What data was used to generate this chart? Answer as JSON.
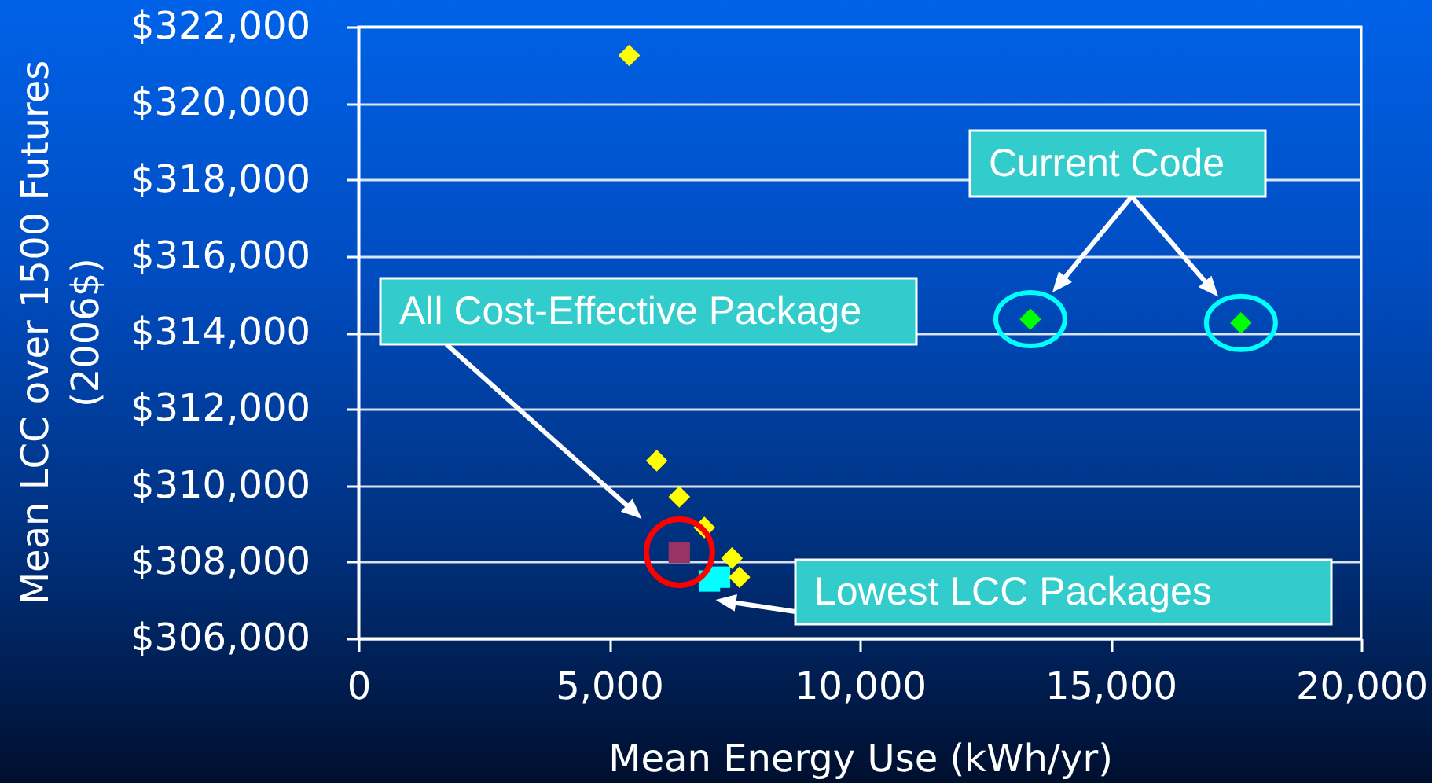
{
  "chart_data": {
    "type": "scatter",
    "xlabel": "Mean Energy Use (kWh/yr)",
    "ylabel": "Mean LCC over 1500 Futures\n(2006$)",
    "xlim": [
      0,
      20000
    ],
    "xticks": [
      {
        "value": 0,
        "label": "0"
      },
      {
        "value": 5000,
        "label": "5,000"
      },
      {
        "value": 10000,
        "label": "10,000"
      },
      {
        "value": 15000,
        "label": "15,000"
      },
      {
        "value": 20000,
        "label": "20,000"
      }
    ],
    "ylim": [
      306000,
      322000
    ],
    "yticks": [
      {
        "value": 306000,
        "label": "$306,000"
      },
      {
        "value": 308000,
        "label": "$308,000"
      },
      {
        "value": 310000,
        "label": "$310,000"
      },
      {
        "value": 312000,
        "label": "$312,000"
      },
      {
        "value": 314000,
        "label": "$314,000"
      },
      {
        "value": 316000,
        "label": "$316,000"
      },
      {
        "value": 318000,
        "label": "$318,000"
      },
      {
        "value": 320000,
        "label": "$320,000"
      },
      {
        "value": 322000,
        "label": "$322,000"
      }
    ],
    "grid": "y",
    "series": [
      {
        "color": "#00ffff",
        "marker": "square",
        "x": [
          7000,
          7200
        ],
        "values": [
          307500,
          307600
        ]
      },
      {
        "color": "#ffff00",
        "marker": "diamond",
        "x": [
          5400,
          5950,
          6400,
          6900,
          7450,
          7600
        ],
        "values": [
          321250,
          310650,
          309700,
          308900,
          308100,
          307600
        ]
      },
      {
        "color": "#993366",
        "marker": "square",
        "x": [
          6400
        ],
        "values": [
          308250
        ]
      },
      {
        "color": "#00ff00",
        "marker": "diamond",
        "x": [
          13400,
          17600
        ],
        "values": [
          314350,
          314250
        ]
      }
    ],
    "annotations": [
      "Current Code",
      "All Cost-Effective Package",
      "Lowest LCC Packages"
    ]
  }
}
